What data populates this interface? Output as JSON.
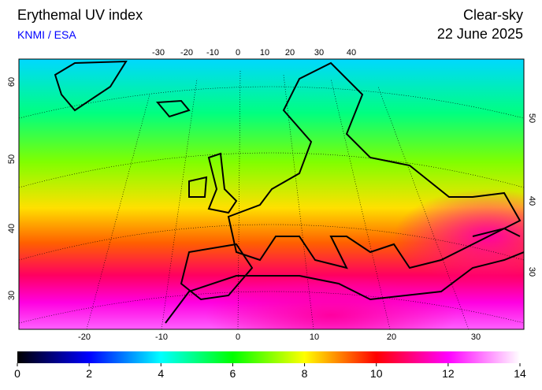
{
  "header": {
    "title": "Erythemal UV index",
    "source": "KNMI / ESA",
    "condition": "Clear-sky",
    "date": "22 June 2025"
  },
  "map": {
    "top_longitude_labels": [
      -30,
      -20,
      -10,
      0,
      10,
      20,
      30,
      40
    ],
    "bottom_longitude_labels": [
      -20,
      -10,
      0,
      10,
      20,
      30
    ],
    "left_latitude_labels": [
      60,
      50,
      40,
      30
    ],
    "right_latitude_labels": [
      50,
      40,
      30
    ]
  },
  "colorbar": {
    "range": [
      0,
      14
    ],
    "ticks": [
      0,
      2,
      4,
      6,
      8,
      10,
      12,
      14
    ],
    "colors": [
      "#000000",
      "#0000ff",
      "#00ffff",
      "#00ff00",
      "#ffff00",
      "#ff0000",
      "#ff00ff",
      "#ffffff"
    ]
  }
}
